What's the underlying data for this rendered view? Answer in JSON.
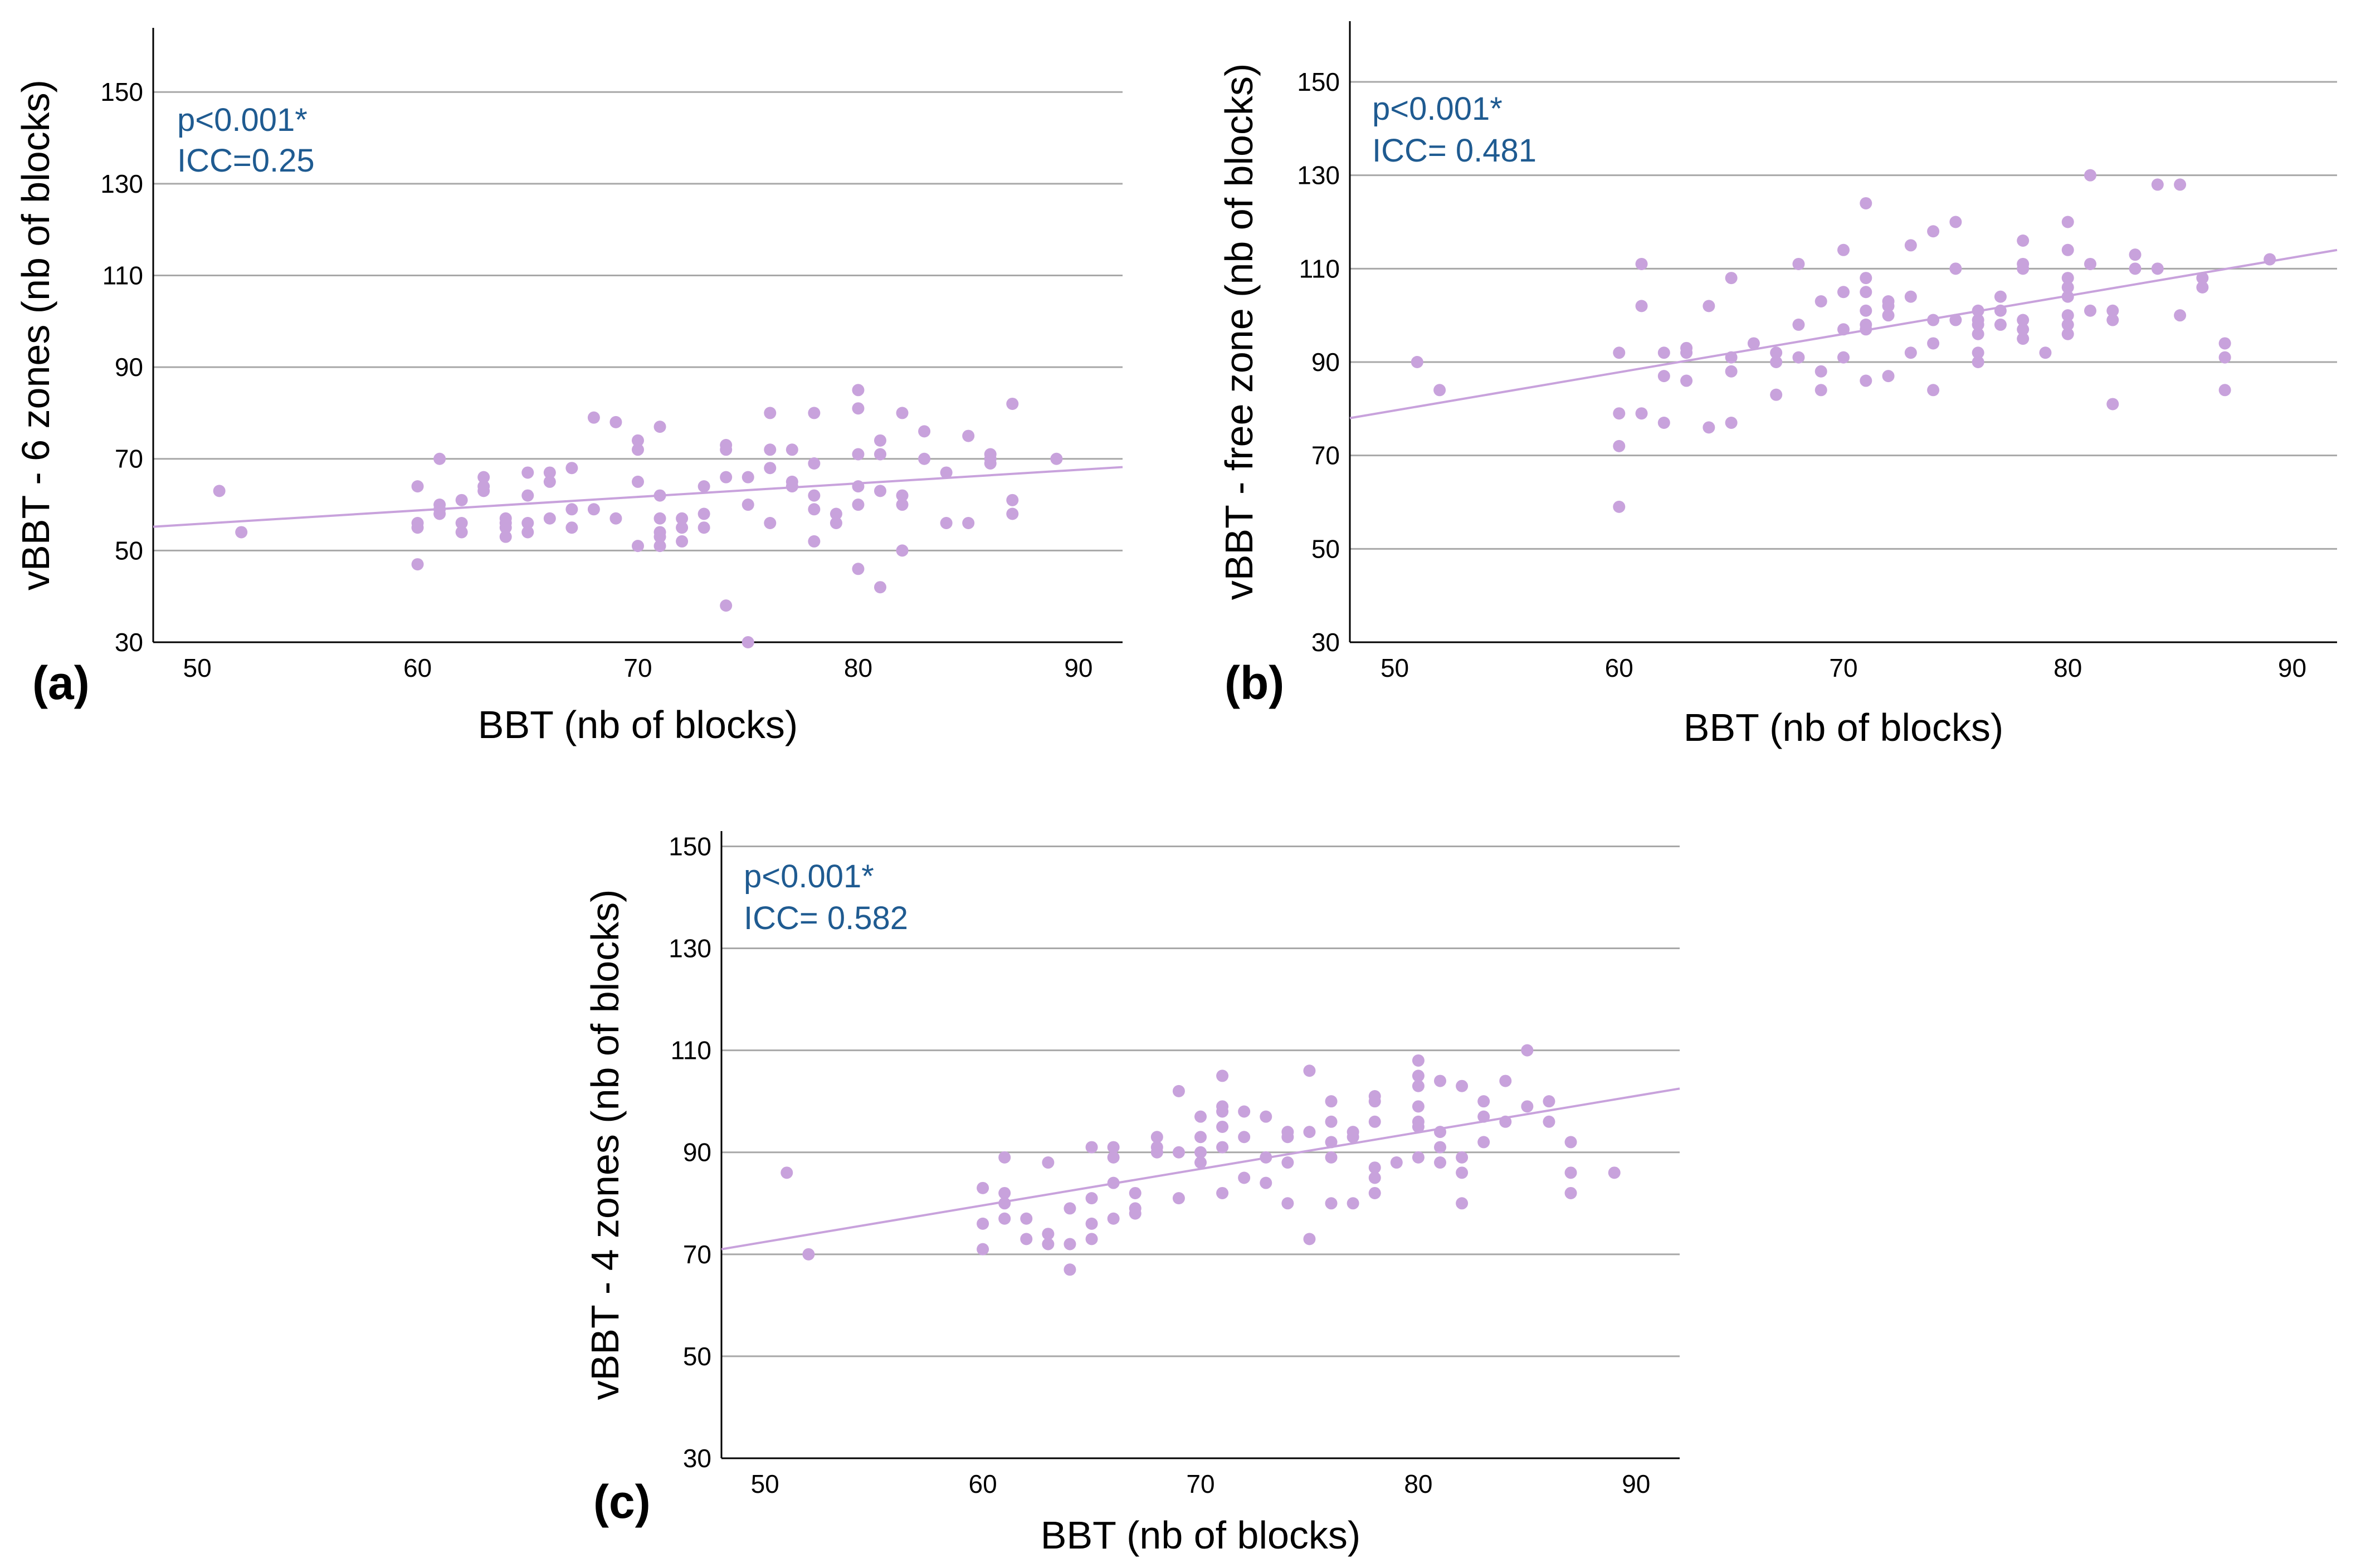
{
  "figure": {
    "panel_color": "#c8a2dc",
    "annotation_color": "#1f5b91",
    "grid_color": "#a8a8a8"
  },
  "chart_data": [
    {
      "id": "a",
      "type": "scatter",
      "panel_label": "(a)",
      "xlabel": "BBT (nb of blocks)",
      "ylabel": "vBBT - 6 zones (nb of blocks)",
      "xlim": [
        48,
        92
      ],
      "ylim": [
        30,
        164
      ],
      "x_ticks": [
        50,
        60,
        70,
        80,
        90
      ],
      "y_ticks": [
        30,
        50,
        70,
        90,
        110,
        130,
        150
      ],
      "grid": "horizontal",
      "annotations": [
        "p<0.001*",
        "ICC=0.25"
      ],
      "fit_line": {
        "x": [
          48,
          92
        ],
        "y": [
          55.2,
          68.2
        ]
      },
      "points": {
        "x": [
          51,
          52,
          60,
          60,
          60,
          60,
          61,
          61,
          61,
          61,
          62,
          62,
          62,
          63,
          63,
          63,
          64,
          64,
          64,
          64,
          65,
          65,
          65,
          65,
          66,
          66,
          66,
          67,
          67,
          67,
          68,
          68,
          69,
          69,
          70,
          70,
          70,
          70,
          71,
          71,
          71,
          71,
          71,
          71,
          72,
          72,
          72,
          73,
          73,
          73,
          74,
          74,
          74,
          74,
          75,
          75,
          75,
          76,
          76,
          76,
          76,
          77,
          77,
          77,
          78,
          78,
          78,
          78,
          78,
          79,
          79,
          80,
          80,
          80,
          80,
          80,
          80,
          81,
          81,
          81,
          81,
          82,
          82,
          82,
          82,
          83,
          83,
          84,
          84,
          85,
          85,
          86,
          86,
          86,
          87,
          87,
          87,
          89
        ],
        "y": [
          63,
          54,
          64,
          56,
          55,
          47,
          70,
          60,
          59,
          58,
          61,
          56,
          54,
          66,
          64,
          63,
          57,
          56,
          55,
          53,
          67,
          62,
          56,
          54,
          67,
          65,
          57,
          68,
          59,
          55,
          79,
          59,
          78,
          57,
          74,
          72,
          65,
          51,
          77,
          62,
          57,
          54,
          53,
          51,
          57,
          55,
          52,
          64,
          58,
          55,
          73,
          72,
          66,
          38,
          66,
          60,
          30,
          80,
          72,
          68,
          56,
          72,
          65,
          64,
          80,
          69,
          62,
          59,
          52,
          58,
          56,
          85,
          81,
          71,
          64,
          60,
          46,
          74,
          71,
          63,
          42,
          80,
          62,
          60,
          50,
          76,
          70,
          67,
          56,
          75,
          56,
          71,
          70,
          69,
          82,
          61,
          58,
          70
        ]
      }
    },
    {
      "id": "b",
      "type": "scatter",
      "panel_label": "(b)",
      "xlabel": "BBT (nb of blocks)",
      "ylabel": "vBBT - free zone (nb of blocks)",
      "xlim": [
        48,
        92
      ],
      "ylim": [
        30,
        163
      ],
      "x_ticks": [
        50,
        60,
        70,
        80,
        90
      ],
      "y_ticks": [
        30,
        50,
        70,
        90,
        110,
        130,
        150
      ],
      "grid": "horizontal",
      "annotations": [
        "p<0.001*",
        "ICC= 0.481"
      ],
      "fit_line": {
        "x": [
          48,
          92
        ],
        "y": [
          78,
          114
        ]
      },
      "points": {
        "x": [
          51,
          52,
          60,
          60,
          60,
          60,
          61,
          61,
          61,
          62,
          62,
          62,
          63,
          63,
          63,
          64,
          64,
          65,
          65,
          65,
          65,
          66,
          67,
          67,
          67,
          68,
          68,
          68,
          69,
          69,
          69,
          70,
          70,
          70,
          70,
          71,
          71,
          71,
          71,
          71,
          71,
          71,
          72,
          72,
          72,
          72,
          73,
          73,
          73,
          74,
          74,
          74,
          74,
          75,
          75,
          75,
          76,
          76,
          76,
          76,
          76,
          76,
          77,
          77,
          77,
          78,
          78,
          78,
          78,
          78,
          78,
          79,
          80,
          80,
          80,
          80,
          80,
          80,
          80,
          80,
          81,
          81,
          81,
          82,
          82,
          82,
          83,
          83,
          84,
          84,
          85,
          85,
          86,
          86,
          87,
          87,
          87,
          89
        ],
        "y": [
          90,
          84,
          92,
          79,
          72,
          59,
          111,
          102,
          79,
          92,
          87,
          77,
          93,
          92,
          86,
          102,
          76,
          108,
          91,
          88,
          77,
          94,
          92,
          90,
          83,
          111,
          98,
          91,
          103,
          88,
          84,
          114,
          105,
          97,
          91,
          124,
          108,
          105,
          101,
          98,
          97,
          86,
          103,
          102,
          100,
          87,
          115,
          104,
          92,
          118,
          99,
          94,
          84,
          120,
          110,
          99,
          101,
          99,
          98,
          96,
          92,
          90,
          104,
          101,
          98,
          116,
          111,
          110,
          99,
          97,
          95,
          92,
          120,
          114,
          108,
          106,
          104,
          100,
          98,
          96,
          130,
          111,
          101,
          101,
          99,
          81,
          113,
          110,
          128,
          110,
          128,
          100,
          108,
          106,
          94,
          91,
          84,
          112
        ]
      }
    },
    {
      "id": "c",
      "type": "scatter",
      "panel_label": "(c)",
      "xlabel": "BBT (nb of blocks)",
      "ylabel": "vBBT - 4 zones (nb of blocks)",
      "xlim": [
        48,
        92
      ],
      "ylim": [
        30,
        153
      ],
      "x_ticks": [
        50,
        60,
        70,
        80,
        90
      ],
      "y_ticks": [
        30,
        50,
        70,
        90,
        110,
        130,
        150
      ],
      "grid": "horizontal",
      "annotations": [
        "p<0.001*",
        "ICC= 0.582"
      ],
      "fit_line": {
        "x": [
          48,
          92
        ],
        "y": [
          71,
          102.5
        ]
      },
      "points": {
        "x": [
          51,
          52,
          60,
          60,
          60,
          61,
          61,
          61,
          61,
          62,
          62,
          63,
          63,
          63,
          64,
          64,
          64,
          65,
          65,
          65,
          65,
          66,
          66,
          66,
          66,
          67,
          67,
          67,
          68,
          68,
          68,
          69,
          69,
          69,
          70,
          70,
          70,
          70,
          71,
          71,
          71,
          71,
          71,
          71,
          72,
          72,
          72,
          73,
          73,
          73,
          74,
          74,
          74,
          74,
          75,
          75,
          75,
          76,
          76,
          76,
          76,
          76,
          77,
          77,
          77,
          78,
          78,
          78,
          78,
          78,
          78,
          79,
          80,
          80,
          80,
          80,
          80,
          80,
          80,
          81,
          81,
          81,
          81,
          82,
          82,
          82,
          82,
          83,
          83,
          83,
          84,
          84,
          85,
          85,
          86,
          86,
          87,
          87,
          87,
          89
        ],
        "y": [
          86,
          70,
          83,
          76,
          71,
          89,
          82,
          80,
          77,
          77,
          73,
          88,
          74,
          72,
          79,
          72,
          67,
          91,
          81,
          76,
          73,
          91,
          89,
          84,
          77,
          82,
          79,
          78,
          93,
          91,
          90,
          102,
          90,
          81,
          97,
          93,
          90,
          88,
          105,
          99,
          98,
          95,
          91,
          82,
          98,
          93,
          85,
          97,
          89,
          84,
          94,
          93,
          88,
          80,
          106,
          94,
          73,
          100,
          96,
          92,
          89,
          80,
          94,
          93,
          80,
          101,
          100,
          96,
          87,
          85,
          82,
          88,
          108,
          105,
          103,
          99,
          96,
          95,
          89,
          104,
          94,
          91,
          88,
          103,
          89,
          86,
          80,
          100,
          97,
          92,
          104,
          96,
          110,
          99,
          100,
          96,
          92,
          86,
          82,
          86
        ]
      }
    }
  ]
}
